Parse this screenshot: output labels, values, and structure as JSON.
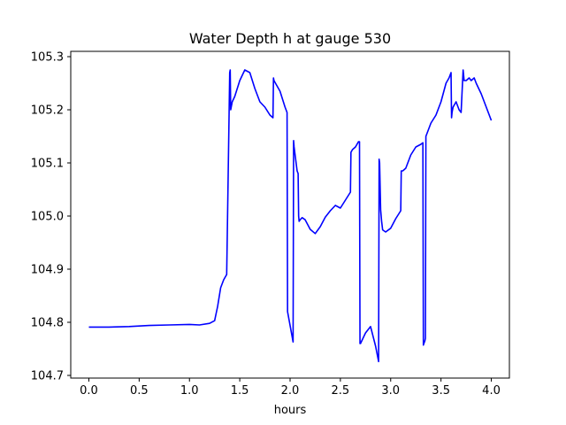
{
  "chart_data": {
    "type": "line",
    "title": "Water Depth h at gauge 530",
    "xlabel": "hours",
    "ylabel": "",
    "xlim": [
      -0.18,
      4.18
    ],
    "ylim": [
      104.695,
      105.31
    ],
    "xticks": [
      0.0,
      0.5,
      1.0,
      1.5,
      2.0,
      2.5,
      3.0,
      3.5,
      4.0
    ],
    "xtick_labels": [
      "0.0",
      "0.5",
      "1.0",
      "1.5",
      "2.0",
      "2.5",
      "3.0",
      "3.5",
      "4.0"
    ],
    "yticks": [
      104.7,
      104.8,
      104.9,
      105.0,
      105.1,
      105.2,
      105.3
    ],
    "ytick_labels": [
      "104.7",
      "104.8",
      "104.9",
      "105.0",
      "105.1",
      "105.2",
      "105.3"
    ],
    "grid": false,
    "legend": "none",
    "series": [
      {
        "color": "#0000ff",
        "x": [
          0.0,
          0.2,
          0.4,
          0.6,
          0.8,
          1.0,
          1.1,
          1.2,
          1.25,
          1.28,
          1.31,
          1.34,
          1.37,
          1.4,
          1.405,
          1.41,
          1.415,
          1.42,
          1.425,
          1.45,
          1.5,
          1.55,
          1.6,
          1.65,
          1.7,
          1.75,
          1.8,
          1.83,
          1.835,
          1.84,
          1.9,
          1.95,
          1.97,
          1.975,
          2.03,
          2.035,
          2.04,
          2.07,
          2.08,
          2.085,
          2.09,
          2.1,
          2.12,
          2.15,
          2.2,
          2.25,
          2.3,
          2.35,
          2.4,
          2.45,
          2.5,
          2.55,
          2.6,
          2.605,
          2.62,
          2.65,
          2.68,
          2.69,
          2.695,
          2.7,
          2.75,
          2.8,
          2.85,
          2.88,
          2.885,
          2.89,
          2.9,
          2.91,
          2.92,
          2.95,
          3.0,
          3.05,
          3.1,
          3.105,
          3.12,
          3.15,
          3.2,
          3.25,
          3.3,
          3.32,
          3.325,
          3.33,
          3.34,
          3.345,
          3.35,
          3.4,
          3.45,
          3.5,
          3.55,
          3.58,
          3.59,
          3.6,
          3.605,
          3.61,
          3.62,
          3.65,
          3.68,
          3.7,
          3.72,
          3.725,
          3.73,
          3.75,
          3.78,
          3.8,
          3.83,
          3.85,
          3.9,
          3.95,
          4.0
        ],
        "y": [
          104.791,
          104.791,
          104.792,
          104.794,
          104.795,
          104.796,
          104.795,
          104.798,
          104.803,
          104.83,
          104.865,
          104.88,
          104.89,
          105.27,
          105.275,
          105.2,
          105.205,
          105.21,
          105.215,
          105.225,
          105.255,
          105.275,
          105.27,
          105.24,
          105.215,
          105.205,
          105.19,
          105.185,
          105.26,
          105.255,
          105.235,
          105.205,
          105.195,
          104.82,
          104.763,
          105.142,
          105.13,
          105.085,
          105.08,
          105.0,
          104.99,
          104.993,
          104.997,
          104.993,
          104.975,
          104.967,
          104.98,
          104.998,
          105.01,
          105.02,
          105.015,
          105.03,
          105.045,
          105.12,
          105.125,
          105.13,
          105.14,
          105.14,
          104.76,
          104.76,
          104.78,
          104.792,
          104.755,
          104.726,
          105.107,
          105.1,
          105.012,
          104.99,
          104.974,
          104.97,
          104.977,
          104.995,
          105.01,
          105.085,
          105.085,
          105.09,
          105.115,
          105.13,
          105.135,
          105.138,
          104.757,
          104.76,
          104.765,
          104.77,
          105.15,
          105.175,
          105.19,
          105.215,
          105.25,
          105.26,
          105.265,
          105.27,
          105.185,
          105.195,
          105.205,
          105.215,
          105.2,
          105.195,
          105.275,
          105.265,
          105.255,
          105.255,
          105.26,
          105.255,
          105.26,
          105.25,
          105.23,
          105.205,
          105.18
        ]
      }
    ]
  }
}
